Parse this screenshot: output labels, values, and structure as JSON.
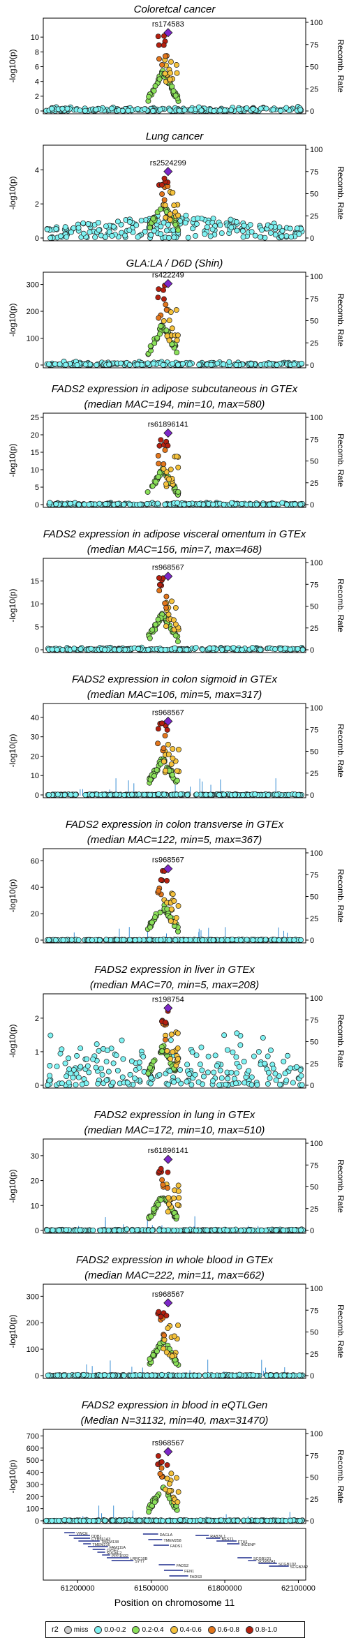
{
  "chart_data": [
    {
      "type": "scatter",
      "title": "Coloretcal cancer",
      "subtitle": "",
      "ylabel": "-log10(p)",
      "y2label": "Recomb. Rate",
      "yticks": [
        0,
        2,
        4,
        6,
        8,
        10
      ],
      "ylim": [
        0,
        12
      ],
      "y2ticks": [
        0,
        25,
        50,
        75,
        100
      ],
      "lead_snp": "rs174583",
      "lead_value": 10.6,
      "peak_shape": "tall",
      "scatter_level": 0.6,
      "seed": 11,
      "recomb_bars": false
    },
    {
      "type": "scatter",
      "title": "Lung cancer",
      "subtitle": "",
      "ylabel": "-log10(p)",
      "y2label": "Recomb. Rate",
      "yticks": [
        0,
        2,
        4
      ],
      "ylim": [
        0,
        5.2
      ],
      "y2ticks": [
        0,
        25,
        50,
        75,
        100
      ],
      "lead_snp": "rs2524299",
      "lead_value": 3.9,
      "peak_shape": "wide",
      "scatter_level": 1.4,
      "seed": 23,
      "recomb_bars": false
    },
    {
      "type": "scatter",
      "title": "GLA:LA / D6D (Shin)",
      "subtitle": "",
      "ylabel": "-log10(p)",
      "y2label": "Recomb. Rate",
      "yticks": [
        0,
        100,
        200,
        300
      ],
      "ylim": [
        0,
        330
      ],
      "y2ticks": [
        0,
        25,
        50,
        75,
        100
      ],
      "lead_snp": "rs422249",
      "lead_value": 303,
      "peak_shape": "tall",
      "scatter_level": 15,
      "seed": 31,
      "recomb_bars": false
    },
    {
      "type": "scatter",
      "title": "FADS2 expression in adipose subcutaneous in GTEx",
      "subtitle": "(median MAC=194, min=10, max=580)",
      "ylabel": "-log10(p)",
      "y2label": "Recomb. Rate",
      "yticks": [
        0,
        5,
        10,
        15,
        20,
        25
      ],
      "ylim": [
        0,
        25
      ],
      "y2ticks": [
        0,
        25,
        50,
        75,
        100
      ],
      "lead_snp": "rs61896141",
      "lead_value": 20.5,
      "peak_shape": "hump",
      "scatter_level": 0.6,
      "seed": 41,
      "recomb_bars": false
    },
    {
      "type": "scatter",
      "title": "FADS2 expression in adipose visceral omentum in GTEx",
      "subtitle": "(median MAC=156, min=7, max=468)",
      "ylabel": "-log10(p)",
      "y2label": "Recomb. Rate",
      "yticks": [
        0,
        5,
        10,
        15
      ],
      "ylim": [
        0,
        19
      ],
      "y2ticks": [
        0,
        25,
        50,
        75,
        100
      ],
      "lead_snp": "rs968567",
      "lead_value": 16,
      "peak_shape": "hump",
      "scatter_level": 0.6,
      "seed": 53,
      "recomb_bars": false
    },
    {
      "type": "scatter",
      "title": "FADS2 expression in colon sigmoid in GTEx",
      "subtitle": "(median MAC=106, min=5, max=317)",
      "ylabel": "-log10(p)",
      "y2label": "Recomb. Rate",
      "yticks": [
        0,
        10,
        20,
        30,
        40
      ],
      "ylim": [
        0,
        45
      ],
      "y2ticks": [
        0,
        25,
        50,
        75,
        100
      ],
      "lead_snp": "rs968567",
      "lead_value": 38,
      "peak_shape": "hump",
      "scatter_level": 0.5,
      "seed": 61,
      "recomb_bars": true
    },
    {
      "type": "scatter",
      "title": "FADS2 expression in colon transverse in GTEx",
      "subtitle": "(median MAC=122, min=5, max=367)",
      "ylabel": "-log10(p)",
      "y2label": "Recomb. Rate",
      "yticks": [
        0,
        20,
        40,
        60
      ],
      "ylim": [
        0,
        66
      ],
      "y2ticks": [
        0,
        25,
        50,
        75,
        100
      ],
      "lead_snp": "rs968567",
      "lead_value": 54,
      "peak_shape": "hump",
      "scatter_level": 0.5,
      "seed": 71,
      "recomb_bars": true
    },
    {
      "type": "scatter",
      "title": "FADS2 expression in liver in GTEx",
      "subtitle": "(median MAC=70, min=5, max=208)",
      "ylabel": "-log10(p)",
      "y2label": "Recomb. Rate",
      "yticks": [
        0,
        1,
        2
      ],
      "ylim": [
        0,
        2.6
      ],
      "y2ticks": [
        0,
        25,
        50,
        75,
        100
      ],
      "lead_snp": "rs198754",
      "lead_value": 2.3,
      "peak_shape": "noisy",
      "scatter_level": 1.1,
      "seed": 83,
      "recomb_bars": false
    },
    {
      "type": "scatter",
      "title": "FADS2 expression in lung in GTEx",
      "subtitle": "(median MAC=172, min=10, max=510)",
      "ylabel": "-log10(p)",
      "y2label": "Recomb. Rate",
      "yticks": [
        0,
        10,
        20,
        30
      ],
      "ylim": [
        0,
        35
      ],
      "y2ticks": [
        0,
        25,
        50,
        75,
        100
      ],
      "lead_snp": "rs61896141",
      "lead_value": 28.5,
      "peak_shape": "hump",
      "scatter_level": 0.5,
      "seed": 97,
      "recomb_bars": true
    },
    {
      "type": "scatter",
      "title": "FADS2 expression in whole blood in GTEx",
      "subtitle": "(median MAC=222, min=11, max=662)",
      "ylabel": "-log10(p)",
      "y2label": "Recomb. Rate",
      "yticks": [
        0,
        100,
        200,
        300
      ],
      "ylim": [
        0,
        330
      ],
      "y2ticks": [
        0,
        25,
        50,
        75,
        100
      ],
      "lead_snp": "rs968567",
      "lead_value": 275,
      "peak_shape": "hump",
      "scatter_level": 4,
      "seed": 101,
      "recomb_bars": true
    },
    {
      "type": "scatter",
      "title": "FADS2 expression in blood in eQTLGen",
      "subtitle": "(Median N=31132, min=40, max=31470)",
      "ylabel": "-log10(p)",
      "y2label": "Recomb. Rate",
      "yticks": [
        0,
        100,
        200,
        300,
        400,
        500,
        600,
        700
      ],
      "ylim": [
        0,
        720
      ],
      "y2ticks": [
        0,
        25,
        50,
        75,
        100
      ],
      "lead_snp": "rs968567",
      "lead_value": 570,
      "peak_shape": "hump",
      "scatter_level": 8,
      "seed": 113,
      "recomb_bars": true
    }
  ],
  "genes": {
    "xlabel": "Position on chromosome 11",
    "xticks": [
      "61200000",
      "61500000",
      "61800000",
      "62100000"
    ],
    "x_tick_values": [
      61200000,
      61500000,
      61800000,
      62100000
    ],
    "xlim": [
      61060000,
      62130000
    ],
    "labels": [
      "VWCE",
      "DDB1",
      "CYB561A3",
      "TMEM138",
      "TMEM216",
      "FAM111A",
      "CPSF7",
      "SDHAF2",
      "PPP1R32",
      "LRRC10B",
      "SYT7",
      "DAGLA",
      "TMEM258",
      "FADS1",
      "FADS2",
      "FEN1",
      "FADS3",
      "RAB3IL1",
      "BEST1",
      "FTH1",
      "INCENP",
      "SCGB1D1",
      "SCGB2A1",
      "SCGB1D2",
      "SCGB2A2"
    ]
  },
  "legend": {
    "title": "r2",
    "items": [
      "miss",
      "0.0-0.2",
      "0.2-0.4",
      "0.4-0.6",
      "0.6-0.8",
      "0.8-1.0"
    ],
    "colors": [
      "#cfcfcf",
      "#7ff3f3",
      "#8be05a",
      "#f5c23c",
      "#e2761c",
      "#b5200f"
    ]
  },
  "colors": {
    "lead": "#7d28c9",
    "recomb": "#3b8fd4",
    "frame": "#000000"
  }
}
